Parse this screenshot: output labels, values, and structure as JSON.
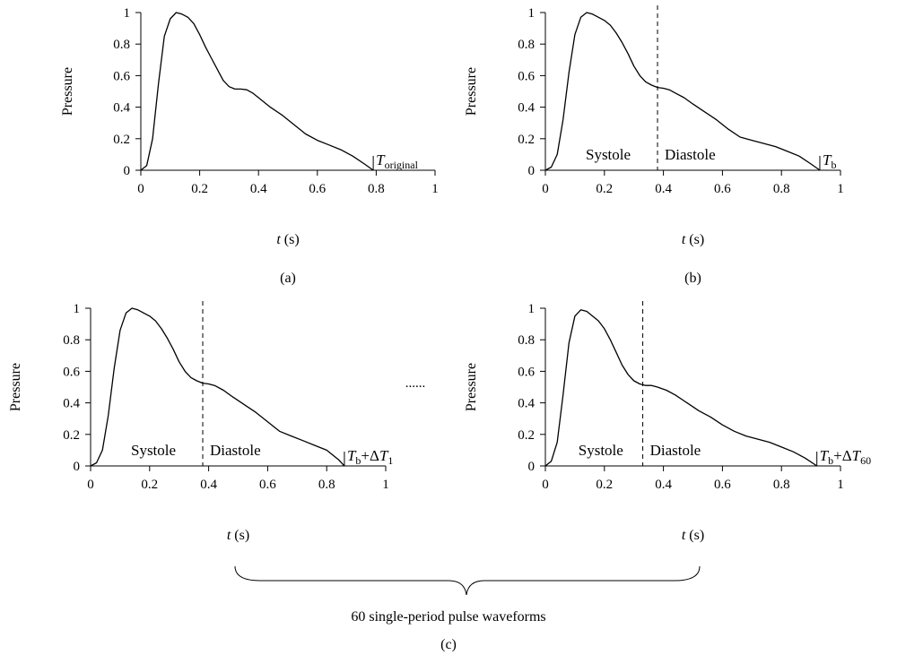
{
  "figure": {
    "ellipsis": "......",
    "brace_label": "60 single-period pulse waveforms",
    "group_caption": "(c)"
  },
  "chart_data": [
    {
      "type": "line",
      "caption": "(a)",
      "xlabel_var": "t",
      "xlabel_unit": " (s)",
      "ylabel": "Pressure",
      "xlim": [
        0,
        1
      ],
      "ylim": [
        0,
        1
      ],
      "x_ticks": [
        "0",
        "0.2",
        "0.4",
        "0.6",
        "0.8",
        "1"
      ],
      "y_ticks": [
        "0",
        "0.2",
        "0.4",
        "0.6",
        "0.8",
        "1"
      ],
      "grid": false,
      "period_end": 0.79,
      "period_label": {
        "main": "T",
        "sub": "original"
      },
      "systole_end": null,
      "phase_labels": null,
      "x": [
        0,
        0.02,
        0.04,
        0.06,
        0.08,
        0.1,
        0.12,
        0.14,
        0.16,
        0.18,
        0.2,
        0.22,
        0.24,
        0.26,
        0.28,
        0.3,
        0.32,
        0.34,
        0.36,
        0.38,
        0.4,
        0.44,
        0.48,
        0.52,
        0.56,
        0.6,
        0.64,
        0.68,
        0.72,
        0.76,
        0.79
      ],
      "y": [
        0,
        0.03,
        0.2,
        0.55,
        0.85,
        0.96,
        1.0,
        0.99,
        0.97,
        0.93,
        0.86,
        0.78,
        0.71,
        0.64,
        0.57,
        0.53,
        0.515,
        0.515,
        0.51,
        0.49,
        0.46,
        0.4,
        0.35,
        0.29,
        0.23,
        0.19,
        0.16,
        0.13,
        0.09,
        0.04,
        0
      ]
    },
    {
      "type": "line",
      "caption": "(b)",
      "xlabel_var": "t",
      "xlabel_unit": " (s)",
      "ylabel": "Pressure",
      "xlim": [
        0,
        1
      ],
      "ylim": [
        0,
        1
      ],
      "x_ticks": [
        "0",
        "0.2",
        "0.4",
        "0.6",
        "0.8",
        "1"
      ],
      "y_ticks": [
        "0",
        "0.2",
        "0.4",
        "0.6",
        "0.8",
        "1"
      ],
      "grid": false,
      "period_end": 0.93,
      "period_label": {
        "main": "T",
        "sub": "b"
      },
      "systole_end": 0.38,
      "phase_labels": {
        "systole": "Systole",
        "diastole": "Diastole"
      },
      "x": [
        0,
        0.02,
        0.04,
        0.06,
        0.08,
        0.1,
        0.12,
        0.14,
        0.16,
        0.18,
        0.2,
        0.22,
        0.24,
        0.26,
        0.28,
        0.3,
        0.32,
        0.34,
        0.36,
        0.38,
        0.4,
        0.42,
        0.44,
        0.47,
        0.5,
        0.54,
        0.58,
        0.62,
        0.66,
        0.7,
        0.74,
        0.78,
        0.82,
        0.86,
        0.9,
        0.93
      ],
      "y": [
        0,
        0.02,
        0.1,
        0.32,
        0.62,
        0.86,
        0.97,
        1.0,
        0.99,
        0.97,
        0.95,
        0.92,
        0.87,
        0.81,
        0.74,
        0.66,
        0.6,
        0.56,
        0.54,
        0.525,
        0.52,
        0.51,
        0.49,
        0.46,
        0.42,
        0.37,
        0.32,
        0.26,
        0.21,
        0.19,
        0.17,
        0.15,
        0.12,
        0.09,
        0.04,
        0
      ]
    },
    {
      "type": "line",
      "caption": null,
      "xlabel_var": "t",
      "xlabel_unit": " (s)",
      "ylabel": "Pressure",
      "xlim": [
        0,
        1
      ],
      "ylim": [
        0,
        1
      ],
      "x_ticks": [
        "0",
        "0.2",
        "0.4",
        "0.6",
        "0.8",
        "1"
      ],
      "y_ticks": [
        "0",
        "0.2",
        "0.4",
        "0.6",
        "0.8",
        "1"
      ],
      "grid": false,
      "period_end": 0.86,
      "period_label": {
        "main": "T",
        "sub": "b",
        "mid": "+Δ",
        "main2": "T",
        "sub2": "1"
      },
      "systole_end": 0.38,
      "phase_labels": {
        "systole": "Systole",
        "diastole": "Diastole"
      },
      "x": [
        0,
        0.02,
        0.04,
        0.06,
        0.08,
        0.1,
        0.12,
        0.14,
        0.16,
        0.18,
        0.2,
        0.22,
        0.24,
        0.26,
        0.28,
        0.3,
        0.32,
        0.34,
        0.36,
        0.38,
        0.4,
        0.42,
        0.45,
        0.48,
        0.52,
        0.56,
        0.6,
        0.64,
        0.68,
        0.72,
        0.76,
        0.8,
        0.84,
        0.86
      ],
      "y": [
        0,
        0.02,
        0.1,
        0.32,
        0.62,
        0.86,
        0.97,
        1.0,
        0.99,
        0.97,
        0.95,
        0.92,
        0.87,
        0.81,
        0.74,
        0.66,
        0.6,
        0.56,
        0.54,
        0.525,
        0.52,
        0.51,
        0.48,
        0.44,
        0.39,
        0.34,
        0.28,
        0.22,
        0.19,
        0.16,
        0.13,
        0.1,
        0.04,
        0
      ]
    },
    {
      "type": "line",
      "caption": null,
      "xlabel_var": "t",
      "xlabel_unit": " (s)",
      "ylabel": "Pressure",
      "xlim": [
        0,
        1
      ],
      "ylim": [
        0,
        1
      ],
      "x_ticks": [
        "0",
        "0.2",
        "0.4",
        "0.6",
        "0.8",
        "1"
      ],
      "y_ticks": [
        "0",
        "0.2",
        "0.4",
        "0.6",
        "0.8",
        "1"
      ],
      "grid": false,
      "period_end": 0.92,
      "period_label": {
        "main": "T",
        "sub": "b",
        "mid": "+Δ",
        "main2": "T",
        "sub2": "60"
      },
      "systole_end": 0.33,
      "phase_labels": {
        "systole": "Systole",
        "diastole": "Diastole"
      },
      "x": [
        0,
        0.02,
        0.04,
        0.06,
        0.08,
        0.1,
        0.12,
        0.14,
        0.16,
        0.18,
        0.2,
        0.22,
        0.24,
        0.26,
        0.28,
        0.3,
        0.32,
        0.34,
        0.36,
        0.38,
        0.41,
        0.44,
        0.48,
        0.52,
        0.56,
        0.6,
        0.64,
        0.68,
        0.72,
        0.76,
        0.8,
        0.84,
        0.88,
        0.92
      ],
      "y": [
        0,
        0.03,
        0.15,
        0.45,
        0.78,
        0.95,
        0.99,
        0.98,
        0.95,
        0.92,
        0.87,
        0.8,
        0.72,
        0.64,
        0.58,
        0.54,
        0.52,
        0.51,
        0.51,
        0.5,
        0.48,
        0.45,
        0.4,
        0.35,
        0.31,
        0.26,
        0.22,
        0.19,
        0.17,
        0.15,
        0.12,
        0.09,
        0.05,
        0
      ]
    }
  ]
}
